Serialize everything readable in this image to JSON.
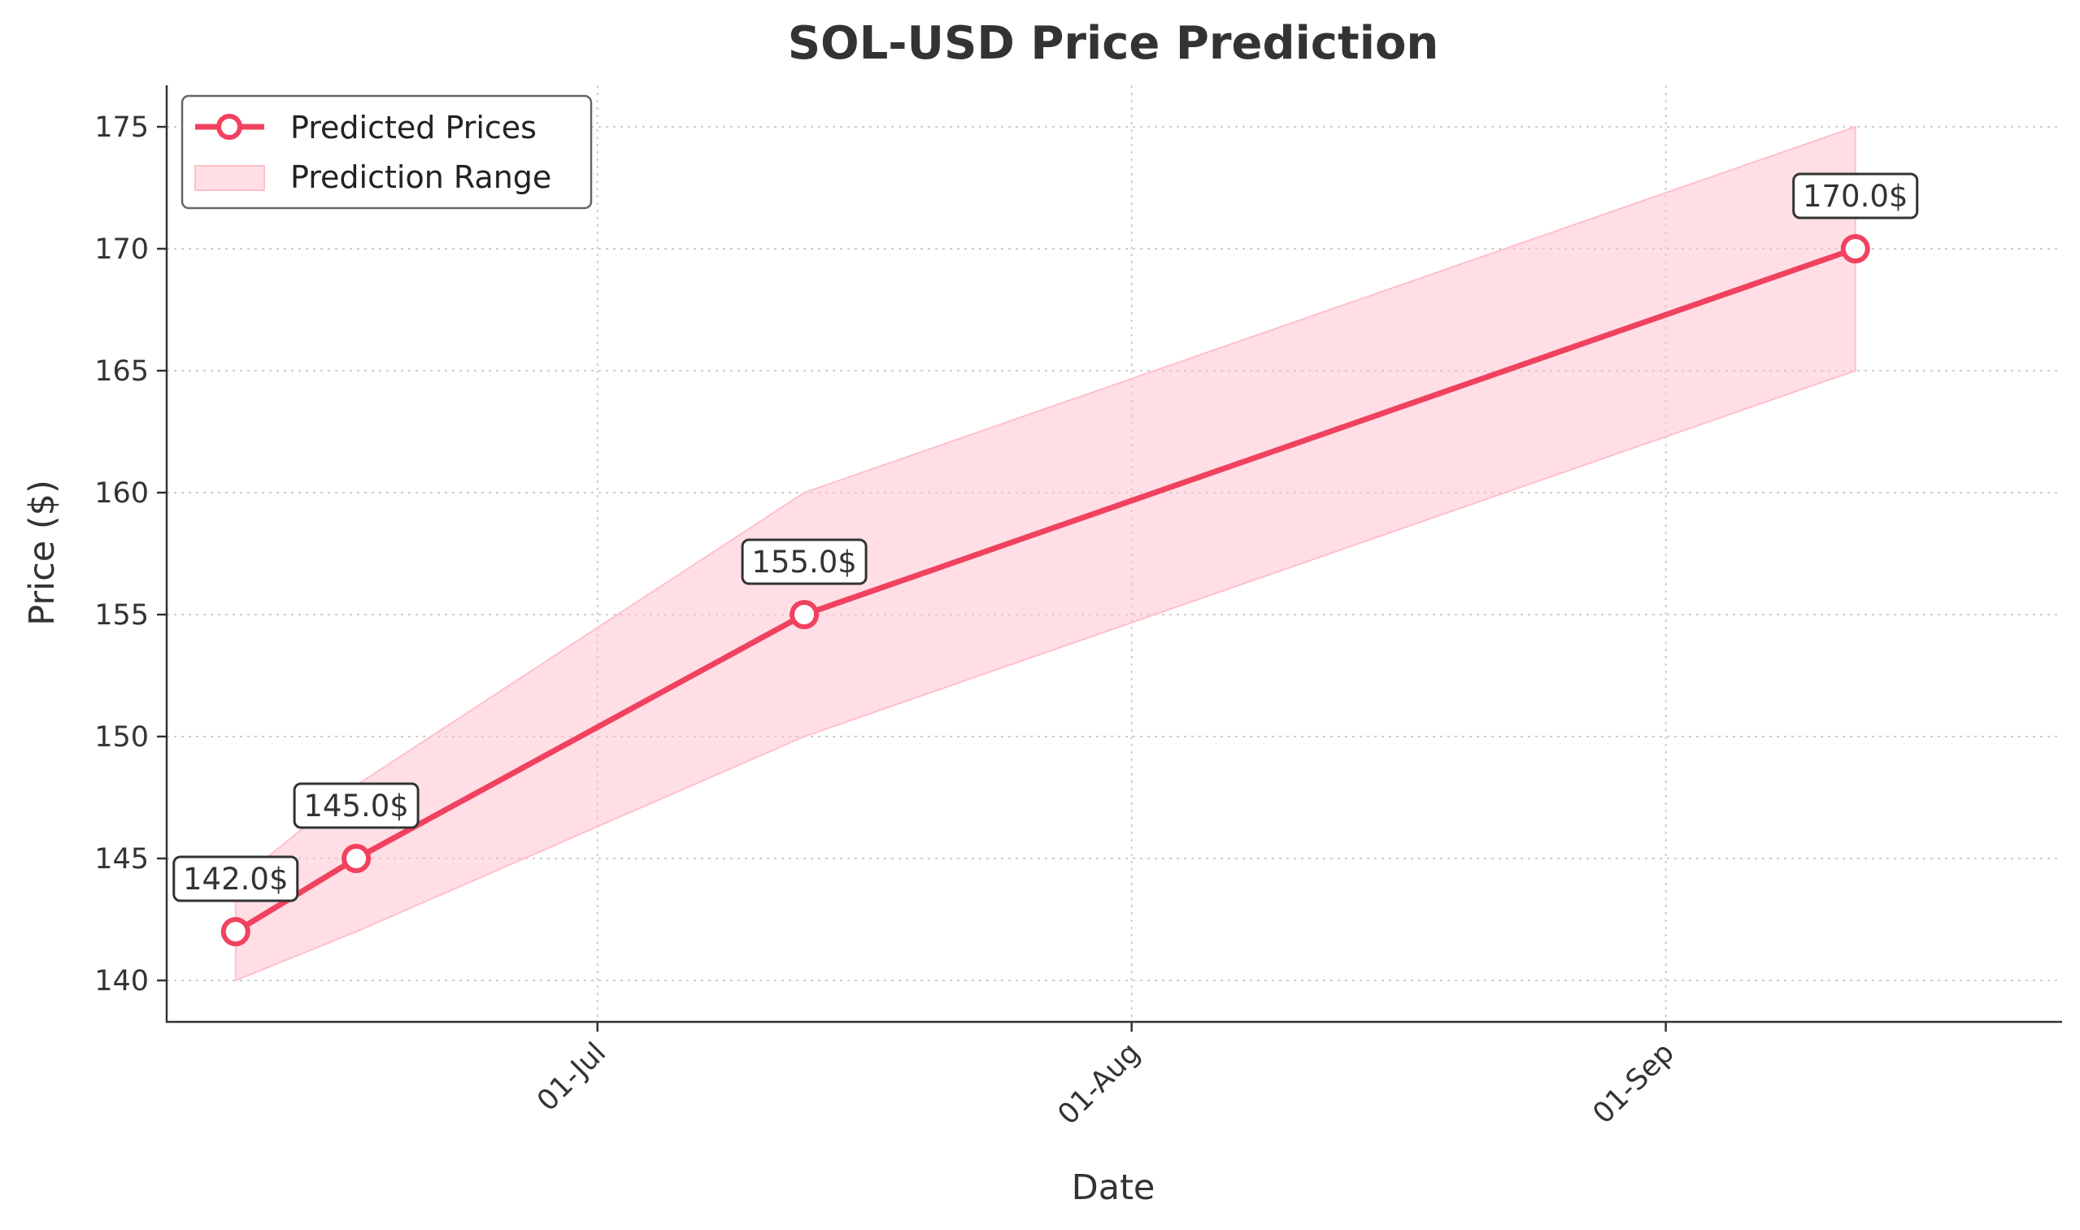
{
  "chart_data": {
    "type": "line",
    "title": "SOL-USD Price Prediction",
    "xlabel": "Date",
    "ylabel": "Price ($)",
    "x_dates": [
      "2025-06-10",
      "2025-06-17",
      "2025-07-13",
      "2025-09-12"
    ],
    "x_range": [
      "2025-06-06",
      "2025-09-24"
    ],
    "ylim": [
      138.3,
      176.7
    ],
    "yticks": [
      140,
      145,
      150,
      155,
      160,
      165,
      170,
      175
    ],
    "xticks": [
      {
        "date": "2025-07-01",
        "label": "01-Jul"
      },
      {
        "date": "2025-08-01",
        "label": "01-Aug"
      },
      {
        "date": "2025-09-01",
        "label": "01-Sep"
      }
    ],
    "grid": true,
    "legend_position": "top-left",
    "series": [
      {
        "name": "Predicted Prices",
        "values": [
          142.0,
          145.0,
          155.0,
          170.0
        ],
        "color": "#f0425f",
        "annotations": [
          "142.0$",
          "145.0$",
          "155.0$",
          "170.0$"
        ]
      }
    ],
    "band": {
      "name": "Prediction Range",
      "lower": [
        140.0,
        142.0,
        150.0,
        165.0
      ],
      "upper": [
        144.0,
        148.0,
        160.0,
        175.0
      ],
      "color": "#ffc0cb"
    }
  }
}
